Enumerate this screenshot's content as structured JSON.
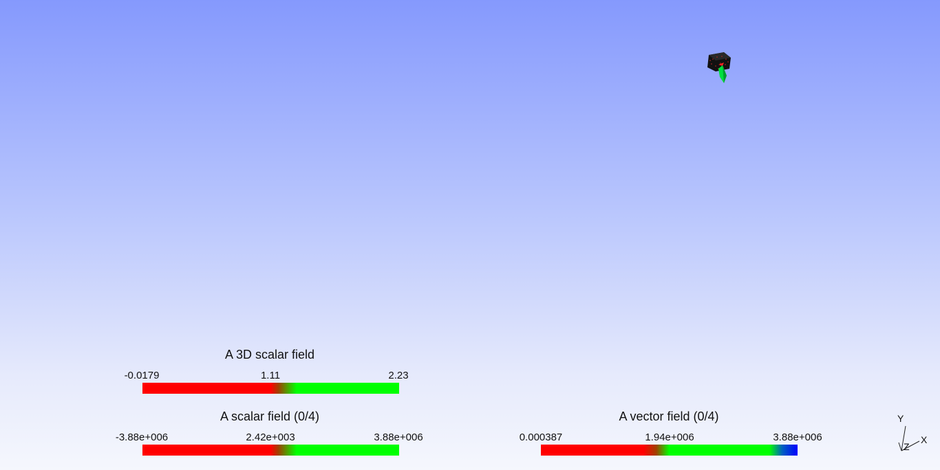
{
  "legends": [
    {
      "title": "A 3D scalar field",
      "ticks": [
        "-0.0179",
        "1.11",
        "2.23"
      ]
    },
    {
      "title": "A scalar field (0/4)",
      "ticks": [
        "-3.88e+006",
        "2.42e+003",
        "3.88e+006"
      ]
    },
    {
      "title": "A vector field (0/4)",
      "ticks": [
        "0.000387",
        "1.94e+006",
        "3.88e+006"
      ]
    }
  ],
  "axes": {
    "x": "X",
    "y": "Y",
    "z": "Z"
  },
  "colors": {
    "background_top": "#8599fd",
    "background_bottom": "#f5f7fd",
    "legend_low": "#ff0000",
    "legend_mid": "#00ff00",
    "legend_high": "#0000ff"
  },
  "icons": {
    "object": "3d-mesh-icon",
    "axes": "orientation-axes-icon"
  }
}
